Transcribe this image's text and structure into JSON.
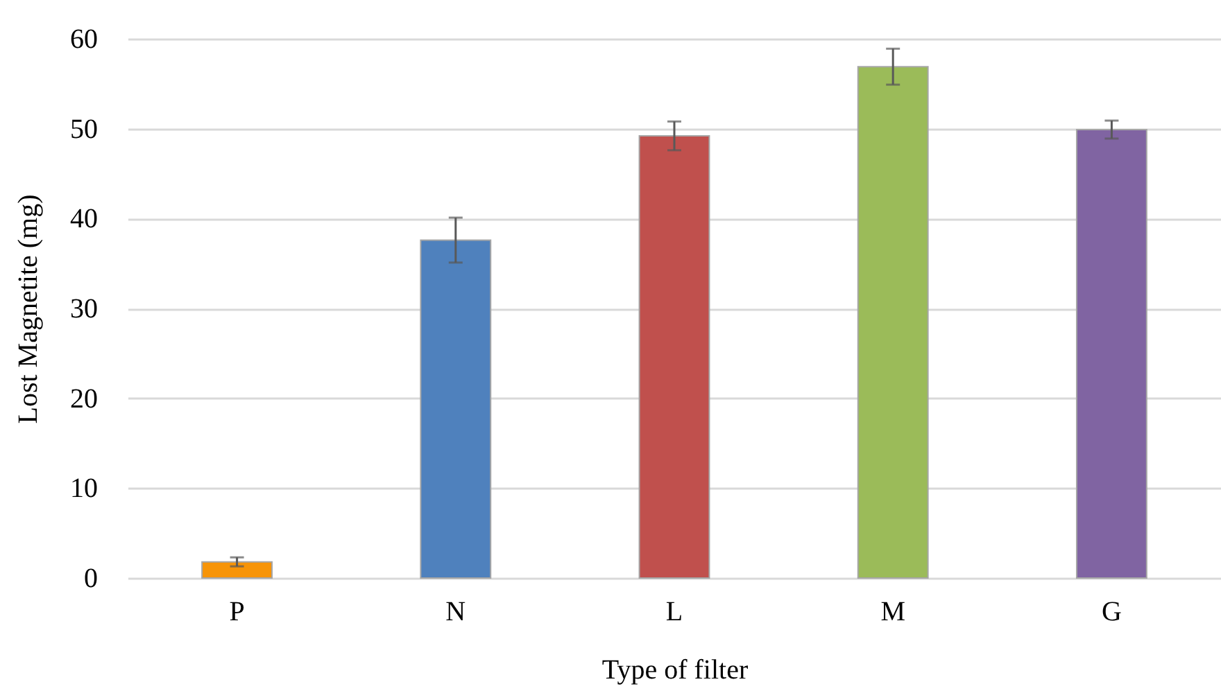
{
  "chart_data": {
    "type": "bar",
    "xlabel": "Type of filter",
    "ylabel": "Lost Magnetite (mg)",
    "categories": [
      "P",
      "N",
      "L",
      "M",
      "G"
    ],
    "values": [
      1.8,
      37.6,
      49.2,
      56.9,
      49.9
    ],
    "errors": [
      0.5,
      2.5,
      1.6,
      2.0,
      1.0
    ],
    "colors": [
      "#f79407",
      "#4f81bd",
      "#c0504d",
      "#9bbb59",
      "#8064a2"
    ],
    "ylim": [
      0,
      60
    ],
    "yticks": [
      0,
      10,
      20,
      30,
      40,
      50,
      60
    ],
    "grid": "y"
  }
}
